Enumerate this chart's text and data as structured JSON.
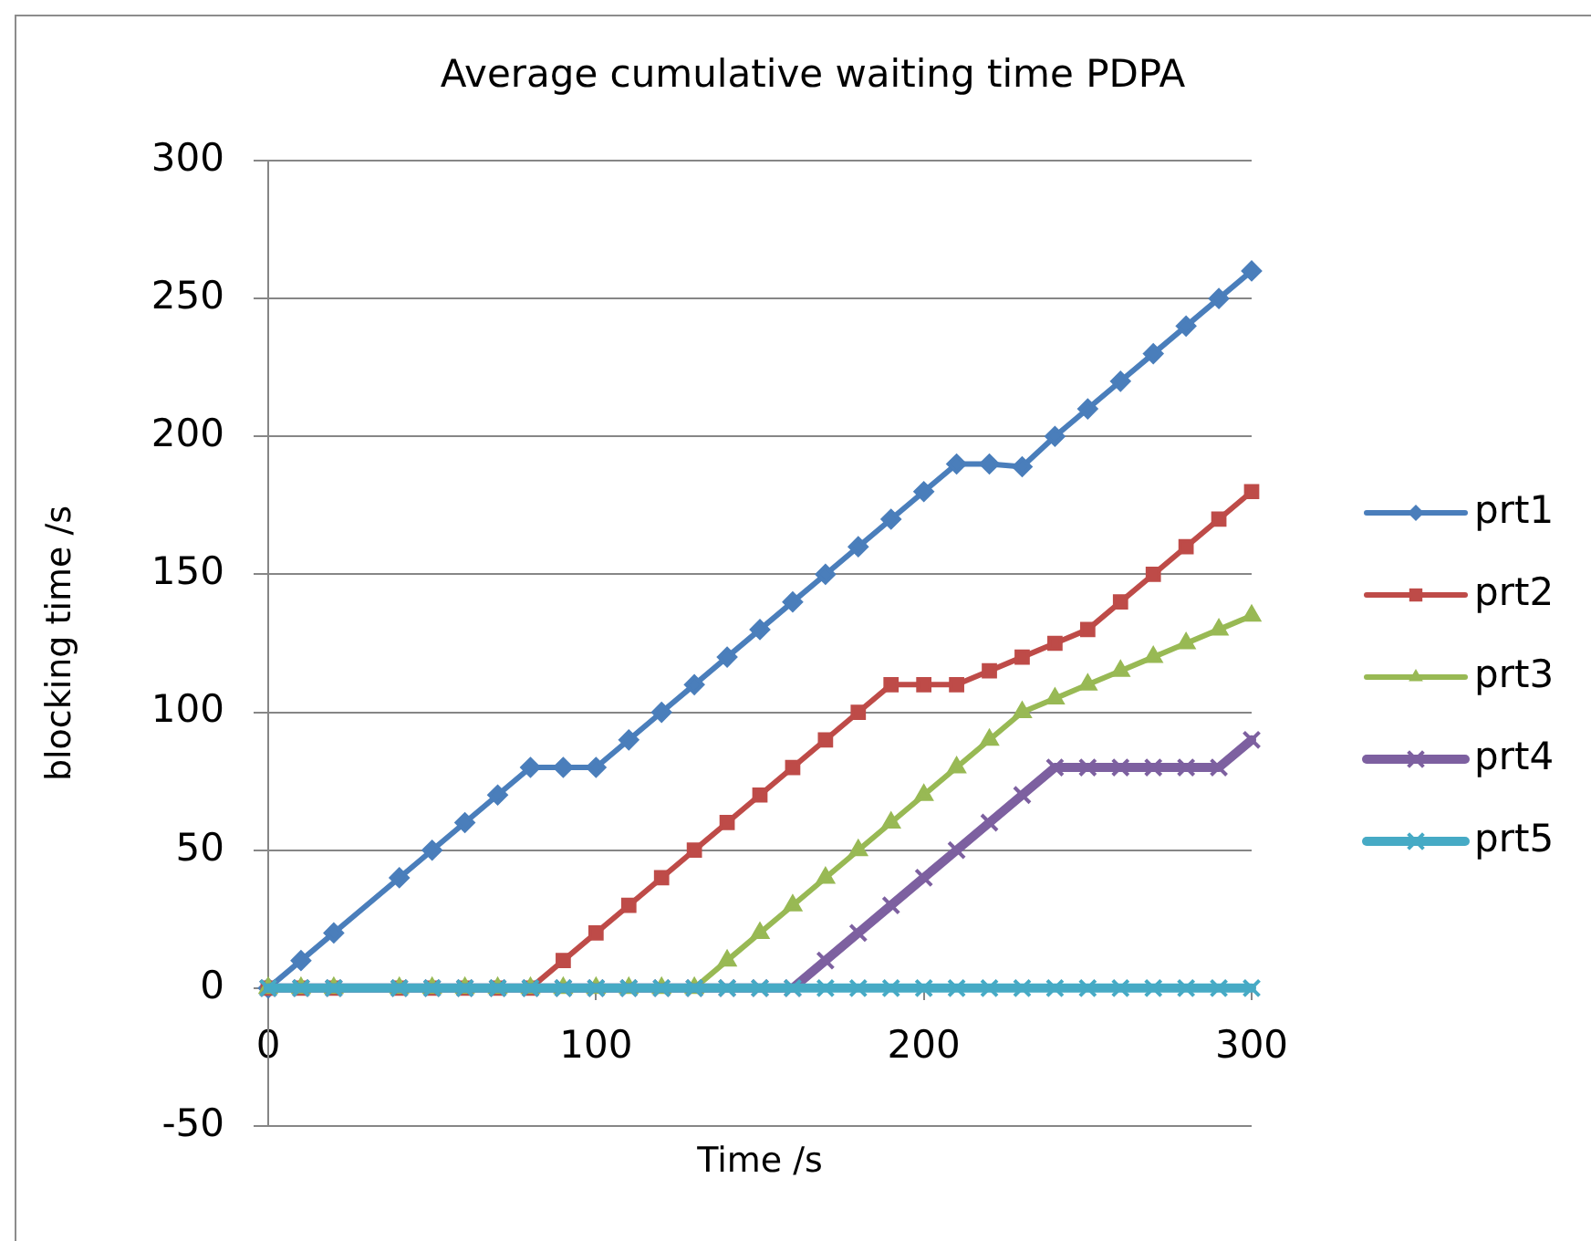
{
  "chart_data": {
    "type": "line",
    "title": "Average cumulative waiting time PDPA",
    "xlabel": "Time /s",
    "ylabel": "blocking time /s",
    "x": [
      0,
      10,
      20,
      40,
      50,
      60,
      70,
      80,
      90,
      100,
      110,
      120,
      130,
      140,
      150,
      160,
      170,
      180,
      190,
      200,
      210,
      220,
      230,
      240,
      250,
      260,
      270,
      280,
      290,
      300
    ],
    "series": [
      {
        "name": "prt1",
        "color": "#4a7ebb",
        "marker": "diamond",
        "values": [
          0,
          10,
          20,
          40,
          50,
          60,
          70,
          80,
          80,
          80,
          90,
          100,
          110,
          120,
          130,
          140,
          150,
          160,
          170,
          180,
          190,
          190,
          189,
          200,
          210,
          220,
          230,
          240,
          250,
          260
        ]
      },
      {
        "name": "prt2",
        "color": "#be4b48",
        "marker": "square",
        "values": [
          0,
          0,
          0,
          0,
          0,
          0,
          0,
          0,
          10,
          20,
          30,
          40,
          50,
          60,
          70,
          80,
          90,
          100,
          110,
          110,
          110,
          115,
          120,
          125,
          130,
          140,
          150,
          160,
          170,
          180
        ]
      },
      {
        "name": "prt3",
        "color": "#98b954",
        "marker": "triangle",
        "values": [
          0,
          0,
          0,
          0,
          0,
          0,
          0,
          0,
          0,
          0,
          0,
          0,
          0,
          10,
          20,
          30,
          40,
          50,
          60,
          70,
          80,
          90,
          100,
          105,
          110,
          115,
          120,
          125,
          130,
          135
        ]
      },
      {
        "name": "prt4",
        "color": "#7d60a0",
        "marker": "cross",
        "values": [
          0,
          0,
          0,
          0,
          0,
          0,
          0,
          0,
          0,
          0,
          0,
          0,
          0,
          0,
          0,
          0,
          10,
          20,
          30,
          40,
          50,
          60,
          70,
          80,
          80,
          80,
          80,
          80,
          80,
          90
        ]
      },
      {
        "name": "prt5",
        "color": "#46aac5",
        "marker": "cross",
        "values": [
          0,
          0,
          0,
          0,
          0,
          0,
          0,
          0,
          0,
          0,
          0,
          0,
          0,
          0,
          0,
          0,
          0,
          0,
          0,
          0,
          0,
          0,
          0,
          0,
          0,
          0,
          0,
          0,
          0,
          0
        ]
      }
    ],
    "xlim": [
      0,
      300
    ],
    "xticks": [
      0,
      100,
      200,
      300
    ],
    "ylim": [
      -50,
      300
    ],
    "yticks": [
      -50,
      0,
      50,
      100,
      150,
      200,
      250,
      300
    ],
    "grid": "y",
    "legend": "right"
  }
}
